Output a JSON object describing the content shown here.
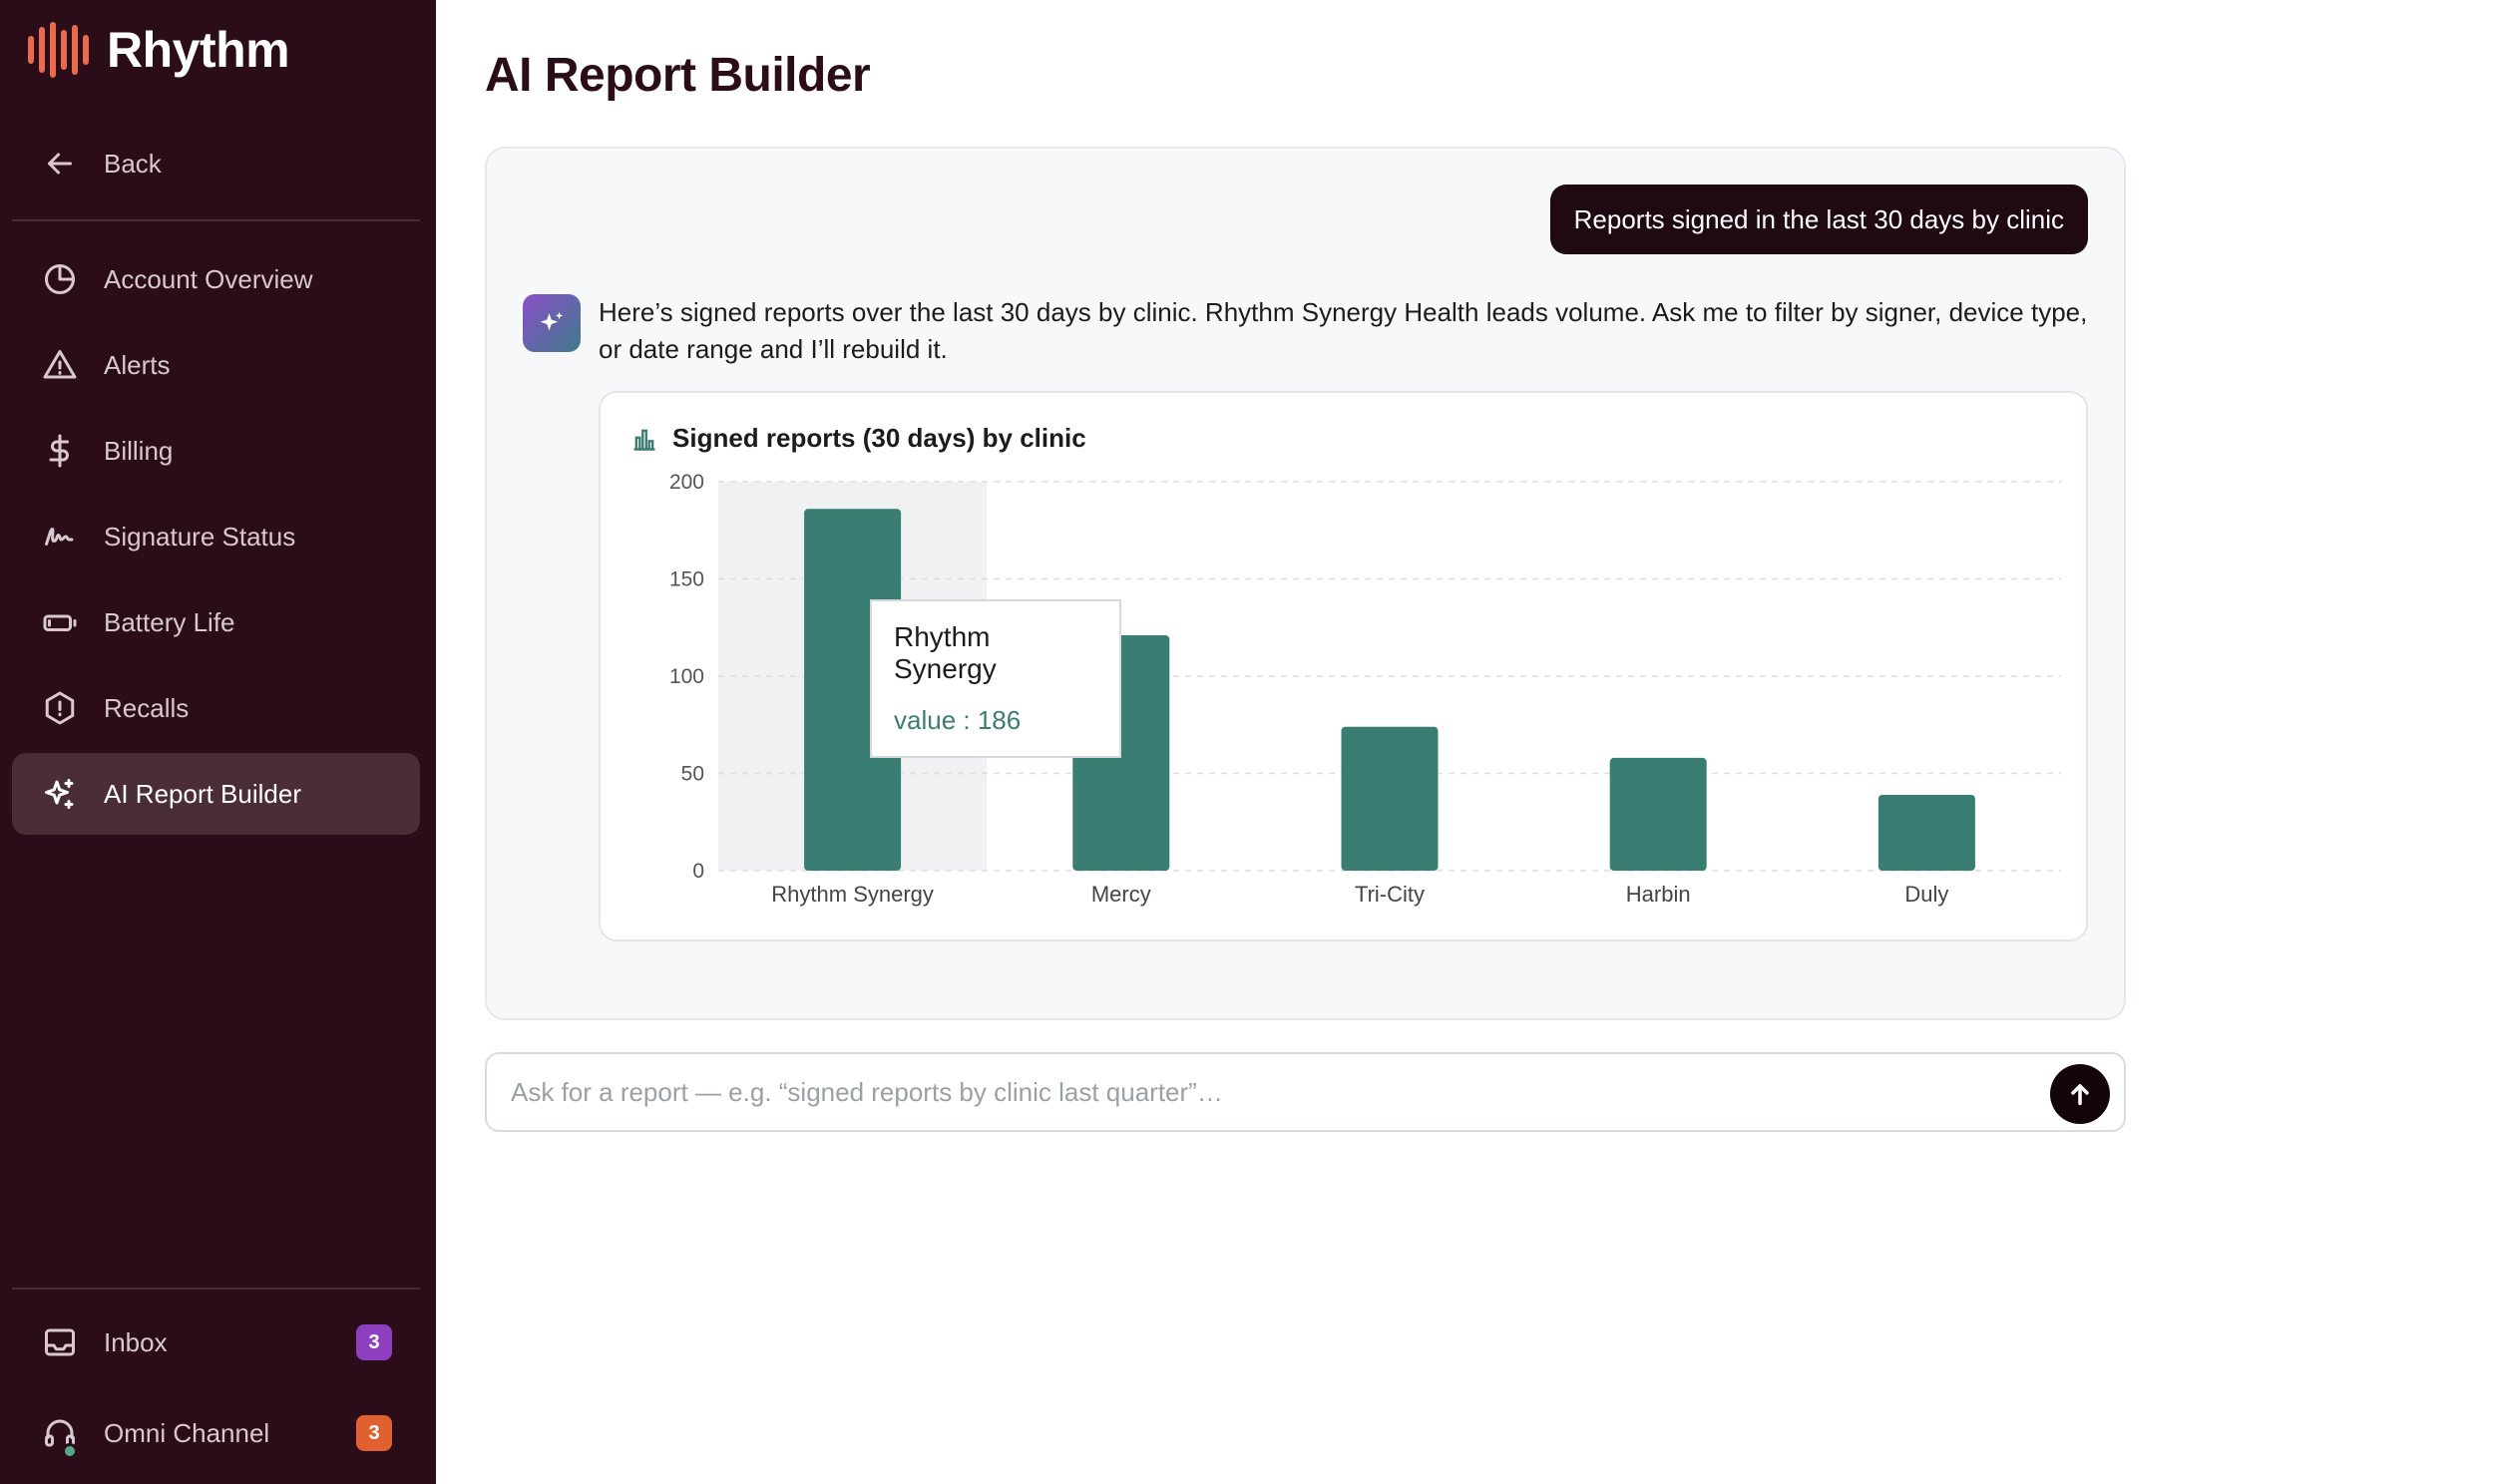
{
  "brand": {
    "name": "Rhythm",
    "accent": "#e96a4d"
  },
  "sidebar": {
    "back_label": "Back",
    "items": [
      {
        "label": "Account Overview",
        "icon": "pie-chart-icon"
      },
      {
        "label": "Alerts",
        "icon": "warning-triangle-icon"
      },
      {
        "label": "Billing",
        "icon": "dollar-icon"
      },
      {
        "label": "Signature Status",
        "icon": "signature-icon"
      },
      {
        "label": "Battery Life",
        "icon": "battery-icon"
      },
      {
        "label": "Recalls",
        "icon": "alert-octagon-icon"
      },
      {
        "label": "AI Report Builder",
        "icon": "sparkles-icon",
        "active": true
      }
    ],
    "footer": [
      {
        "label": "Inbox",
        "icon": "inbox-icon",
        "badge": "3",
        "badge_color": "#8e3fbf"
      },
      {
        "label": "Omni Channel",
        "icon": "headset-icon",
        "badge": "3",
        "badge_color": "#e0612f"
      }
    ]
  },
  "page": {
    "title": "AI Report Builder"
  },
  "chat": {
    "user_message": "Reports signed in the last 30 days by clinic",
    "ai_message": "Here’s signed reports over the last 30 days by clinic. Rhythm Synergy Health leads volume. Ask me to filter by signer, device type, or date range and I’ll rebuild it.",
    "chart_title": "Signed reports (30 days) by clinic",
    "tooltip": {
      "name": "Rhythm Synergy",
      "value_label": "value : 186"
    }
  },
  "chart_data": {
    "type": "bar",
    "title": "Signed reports (30 days) by clinic",
    "categories": [
      "Rhythm Synergy",
      "Mercy",
      "Tri-City",
      "Harbin",
      "Duly"
    ],
    "values": [
      186,
      121,
      74,
      58,
      39
    ],
    "ylim": [
      0,
      200
    ],
    "yticks": [
      0,
      50,
      100,
      150,
      200
    ],
    "bar_color": "#3a7d72",
    "grid": true,
    "highlighted_category": "Rhythm Synergy"
  },
  "prompt": {
    "placeholder": "Ask for a report — e.g. “signed reports by clinic last quarter”…"
  }
}
